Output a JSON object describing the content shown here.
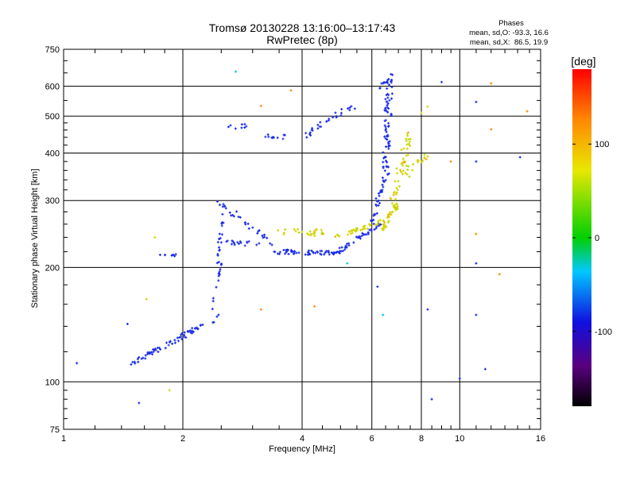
{
  "chart_data": {
    "type": "scatter",
    "title": "Tromsø 20130228 13:16:00–13:17:43",
    "subtitle": "RwPretec (8p)",
    "xlabel": "Frequency [MHz]",
    "ylabel": "Stationary phase Virtual Height [km]",
    "x_scale": "log",
    "y_scale": "log",
    "xlim": [
      1,
      16
    ],
    "ylim": [
      75,
      750
    ],
    "x_ticks": [
      1,
      2,
      4,
      6,
      8,
      10,
      16
    ],
    "x_tick_labels": [
      "1",
      "2",
      "4",
      "6",
      "8",
      "10",
      "16"
    ],
    "y_ticks": [
      75,
      100,
      200,
      300,
      400,
      500,
      600,
      750
    ],
    "y_tick_labels": [
      "75",
      "100",
      "200",
      "300",
      "400",
      "500",
      "600",
      "750"
    ],
    "grid": true,
    "phases_box": {
      "title": "Phases",
      "line1": "mean, sd,O: -93.3, 16.6",
      "line2": "mean, sd,X:  86.5, 19.9"
    },
    "colorbar": {
      "unit": "[deg]",
      "range": [
        -180,
        180
      ],
      "ticks": [
        100,
        0,
        -100
      ],
      "tick_labels": [
        "100",
        "0",
        "-100"
      ]
    },
    "series": [
      {
        "mode": "O",
        "phase_deg": -93.3,
        "color": "#1a2ee6",
        "segments": [
          {
            "x": [
              1.45,
              2.5
            ],
            "y": [
              110,
              150
            ],
            "n": 70,
            "jitter": 0.025
          },
          {
            "x": [
              2.35,
              2.5
            ],
            "y": [
              150,
              205
            ],
            "n": 14,
            "jitter": 0.01
          },
          {
            "x": [
              2.45,
              2.55
            ],
            "y": [
              205,
              300
            ],
            "n": 18,
            "jitter": 0.015
          },
          {
            "x": [
              2.45,
              3.4
            ],
            "y": [
              300,
              228
            ],
            "n": 28,
            "jitter": 0.03
          },
          {
            "x": [
              3.4,
              5.0
            ],
            "y": [
              220,
              218
            ],
            "n": 60,
            "jitter": 0.02
          },
          {
            "x": [
              5.0,
              6.3
            ],
            "y": [
              222,
              260
            ],
            "n": 40,
            "jitter": 0.02
          },
          {
            "x": [
              6.0,
              6.5
            ],
            "y": [
              260,
              350
            ],
            "n": 30,
            "jitter": 0.03
          },
          {
            "x": [
              6.5,
              6.65
            ],
            "y": [
              350,
              640
            ],
            "n": 80,
            "jitter": 0.04
          },
          {
            "x": [
              6.25,
              6.45
            ],
            "y": [
              560,
              620
            ],
            "n": 6,
            "jitter": 0.02
          },
          {
            "x": [
              1.72,
              1.95
            ],
            "y": [
              215,
              215
            ],
            "n": 8,
            "jitter": 0.01
          },
          {
            "x": [
              2.4,
              3.1
            ],
            "y": [
              235,
              230
            ],
            "n": 20,
            "jitter": 0.02
          },
          {
            "x": [
              3.2,
              3.65
            ],
            "y": [
              445,
              440
            ],
            "n": 12,
            "jitter": 0.02
          },
          {
            "x": [
              4.0,
              5.5
            ],
            "y": [
              440,
              540
            ],
            "n": 30,
            "jitter": 0.03
          },
          {
            "x": [
              2.6,
              2.9
            ],
            "y": [
              470,
              470
            ],
            "n": 8,
            "jitter": 0.02
          }
        ]
      },
      {
        "mode": "X",
        "phase_deg": 86.5,
        "color": "#d4d400",
        "segments": [
          {
            "x": [
              3.5,
              5.0
            ],
            "y": [
              250,
              245
            ],
            "n": 30,
            "jitter": 0.03
          },
          {
            "x": [
              5.2,
              6.3
            ],
            "y": [
              245,
              265
            ],
            "n": 30,
            "jitter": 0.02
          },
          {
            "x": [
              6.3,
              7.0
            ],
            "y": [
              250,
              300
            ],
            "n": 40,
            "jitter": 0.03
          },
          {
            "x": [
              6.8,
              7.5
            ],
            "y": [
              300,
              470
            ],
            "n": 40,
            "jitter": 0.04
          },
          {
            "x": [
              7.2,
              8.2
            ],
            "y": [
              350,
              390
            ],
            "n": 20,
            "jitter": 0.04
          }
        ]
      },
      {
        "mode": "scatter",
        "points": [
          {
            "x": 1.08,
            "y": 112,
            "c": "#1a2ee6"
          },
          {
            "x": 1.45,
            "y": 142,
            "c": "#1a2ee6"
          },
          {
            "x": 1.55,
            "y": 88,
            "c": "#1a2ee6"
          },
          {
            "x": 1.62,
            "y": 165,
            "c": "#d4d400"
          },
          {
            "x": 1.7,
            "y": 240,
            "c": "#d4d400"
          },
          {
            "x": 1.85,
            "y": 95,
            "c": "#d4d400"
          },
          {
            "x": 2.72,
            "y": 655,
            "c": "#00c8e6"
          },
          {
            "x": 3.15,
            "y": 532,
            "c": "#ff8800"
          },
          {
            "x": 3.75,
            "y": 585,
            "c": "#ff8800"
          },
          {
            "x": 3.15,
            "y": 155,
            "c": "#ff8800"
          },
          {
            "x": 4.3,
            "y": 158,
            "c": "#ff8800"
          },
          {
            "x": 5.2,
            "y": 205,
            "c": "#00c8e6"
          },
          {
            "x": 6.2,
            "y": 178,
            "c": "#1a2ee6"
          },
          {
            "x": 6.4,
            "y": 150,
            "c": "#00c8e6"
          },
          {
            "x": 8.3,
            "y": 155,
            "c": "#1a2ee6"
          },
          {
            "x": 8.5,
            "y": 90,
            "c": "#1a2ee6"
          },
          {
            "x": 9.0,
            "y": 615,
            "c": "#1a2ee6"
          },
          {
            "x": 9.5,
            "y": 380,
            "c": "#ff8800"
          },
          {
            "x": 11.0,
            "y": 545,
            "c": "#1a2ee6"
          },
          {
            "x": 11.0,
            "y": 380,
            "c": "#1a2ee6"
          },
          {
            "x": 11.0,
            "y": 245,
            "c": "#ff8800"
          },
          {
            "x": 11.0,
            "y": 205,
            "c": "#1a2ee6"
          },
          {
            "x": 11.0,
            "y": 150,
            "c": "#1a2ee6"
          },
          {
            "x": 11.6,
            "y": 108,
            "c": "#1a2ee6"
          },
          {
            "x": 12.0,
            "y": 610,
            "c": "#ff8800"
          },
          {
            "x": 12.0,
            "y": 462,
            "c": "#ff8800"
          },
          {
            "x": 12.6,
            "y": 192,
            "c": "#ff8800"
          },
          {
            "x": 14.2,
            "y": 390,
            "c": "#1a2ee6"
          },
          {
            "x": 14.8,
            "y": 515,
            "c": "#ff8800"
          },
          {
            "x": 10.0,
            "y": 102,
            "c": "#1a2ee6"
          },
          {
            "x": 8.0,
            "y": 510,
            "c": "#d4d400"
          },
          {
            "x": 8.3,
            "y": 530,
            "c": "#d4d400"
          }
        ]
      }
    ]
  }
}
